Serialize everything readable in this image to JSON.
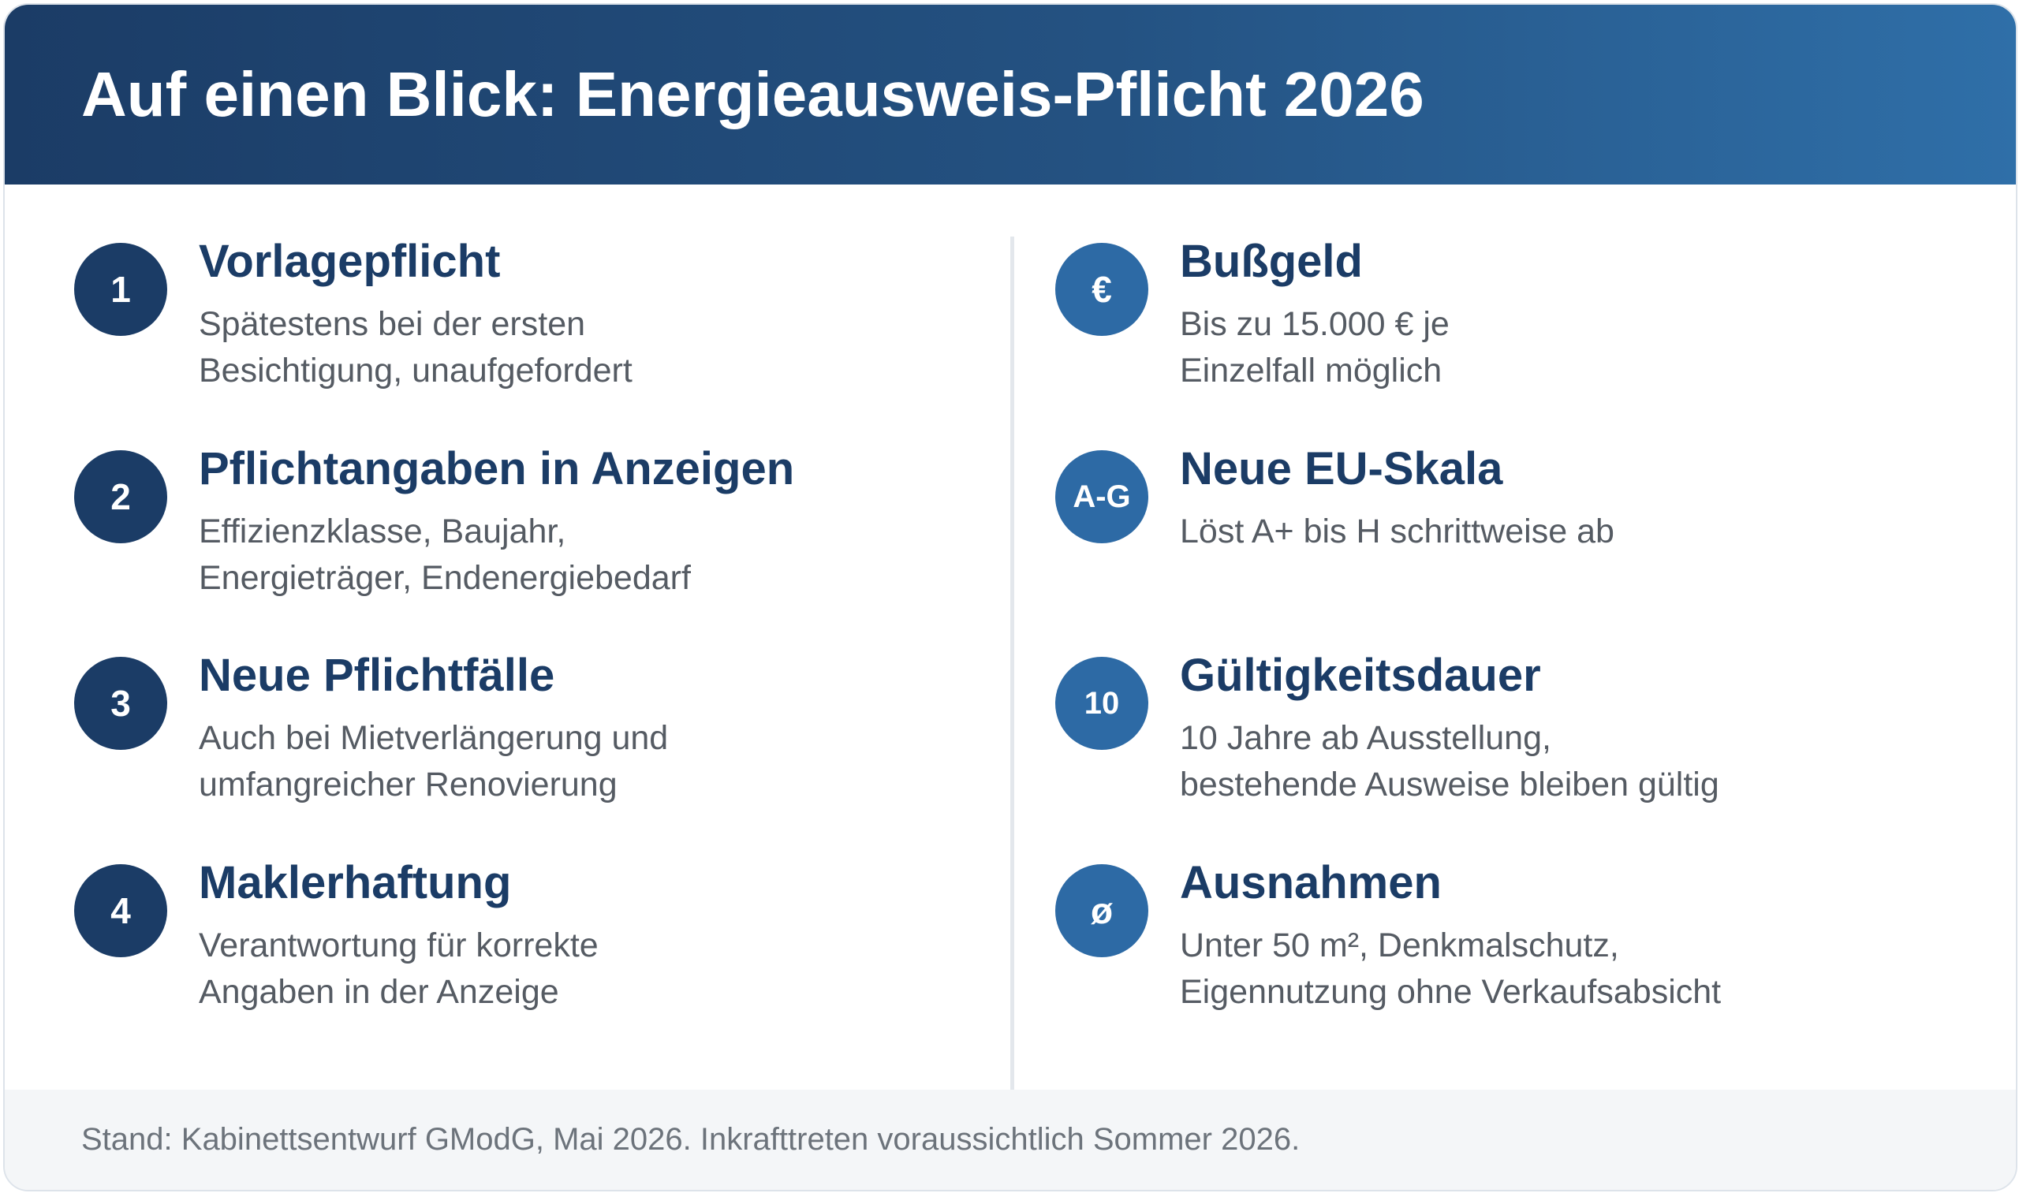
{
  "header": {
    "title": "Auf einen Blick: Energieausweis-Pflicht 2026"
  },
  "left_items": [
    {
      "badge": "1",
      "title": "Vorlagepflicht",
      "description": "Spätestens bei der ersten\nBesichtigung, unaufgefordert"
    },
    {
      "badge": "2",
      "title": "Pflichtangaben in Anzeigen",
      "description": "Effizienzklasse, Baujahr,\nEnergieträger, Endenergiebedarf"
    },
    {
      "badge": "3",
      "title": "Neue Pflichtfälle",
      "description": "Auch bei Mietverlängerung und\numfangreicher Renovierung"
    },
    {
      "badge": "4",
      "title": "Maklerhaftung",
      "description": "Verantwortung für korrekte\nAngaben in der Anzeige"
    }
  ],
  "right_items": [
    {
      "badge": "€",
      "title": "Bußgeld",
      "description": "Bis zu 15.000 € je\nEinzelfall möglich"
    },
    {
      "badge": "A-G",
      "title": "Neue EU-Skala",
      "description": "Löst A+ bis H schrittweise ab"
    },
    {
      "badge": "10",
      "title": "Gültigkeitsdauer",
      "description": "10 Jahre ab Ausstellung,\nbestehende Ausweise bleiben gültig"
    },
    {
      "badge": "ø",
      "title": "Ausnahmen",
      "description": "Unter 50 m², Denkmalschutz,\nEigennutzung ohne Verkaufsabsicht"
    }
  ],
  "footer": {
    "note": "Stand: Kabinettsentwurf GModG, Mai 2026. Inkrafttreten voraussichtlich Sommer 2026."
  },
  "colors": {
    "primary_dark": "#1b3c66",
    "primary_light": "#2d6aa5",
    "text_muted": "#555b63"
  }
}
